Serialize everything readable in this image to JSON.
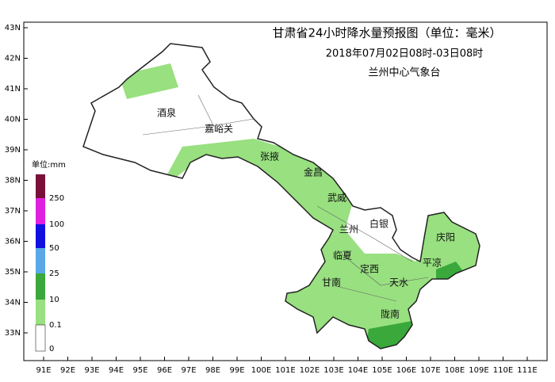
{
  "header": {
    "title": "甘肃省24小时降水量预报图（单位：毫米）",
    "period": "2018年07月02日08时-03日08时",
    "issuer": "兰州中心气象台"
  },
  "axes": {
    "latitudes": [
      "43N",
      "42N",
      "41N",
      "40N",
      "39N",
      "38N",
      "37N",
      "36N",
      "35N",
      "34N",
      "33N"
    ],
    "longitudes": [
      "91E",
      "92E",
      "93E",
      "94E",
      "95E",
      "96E",
      "97E",
      "98E",
      "99E",
      "100E",
      "101E",
      "102E",
      "103E",
      "104E",
      "105E",
      "106E",
      "107E",
      "108E",
      "109E",
      "110E",
      "111E"
    ]
  },
  "legend": {
    "unit": "单位:mm",
    "levels": [
      "250",
      "100",
      "50",
      "25",
      "10",
      "0.1",
      "0"
    ]
  },
  "cities": [
    "酒泉",
    "嘉峪关",
    "张掖",
    "金昌",
    "武威",
    "白银",
    "兰州",
    "庆阳",
    "临夏",
    "定西",
    "平凉",
    "甘南",
    "天水",
    "陇南"
  ]
}
